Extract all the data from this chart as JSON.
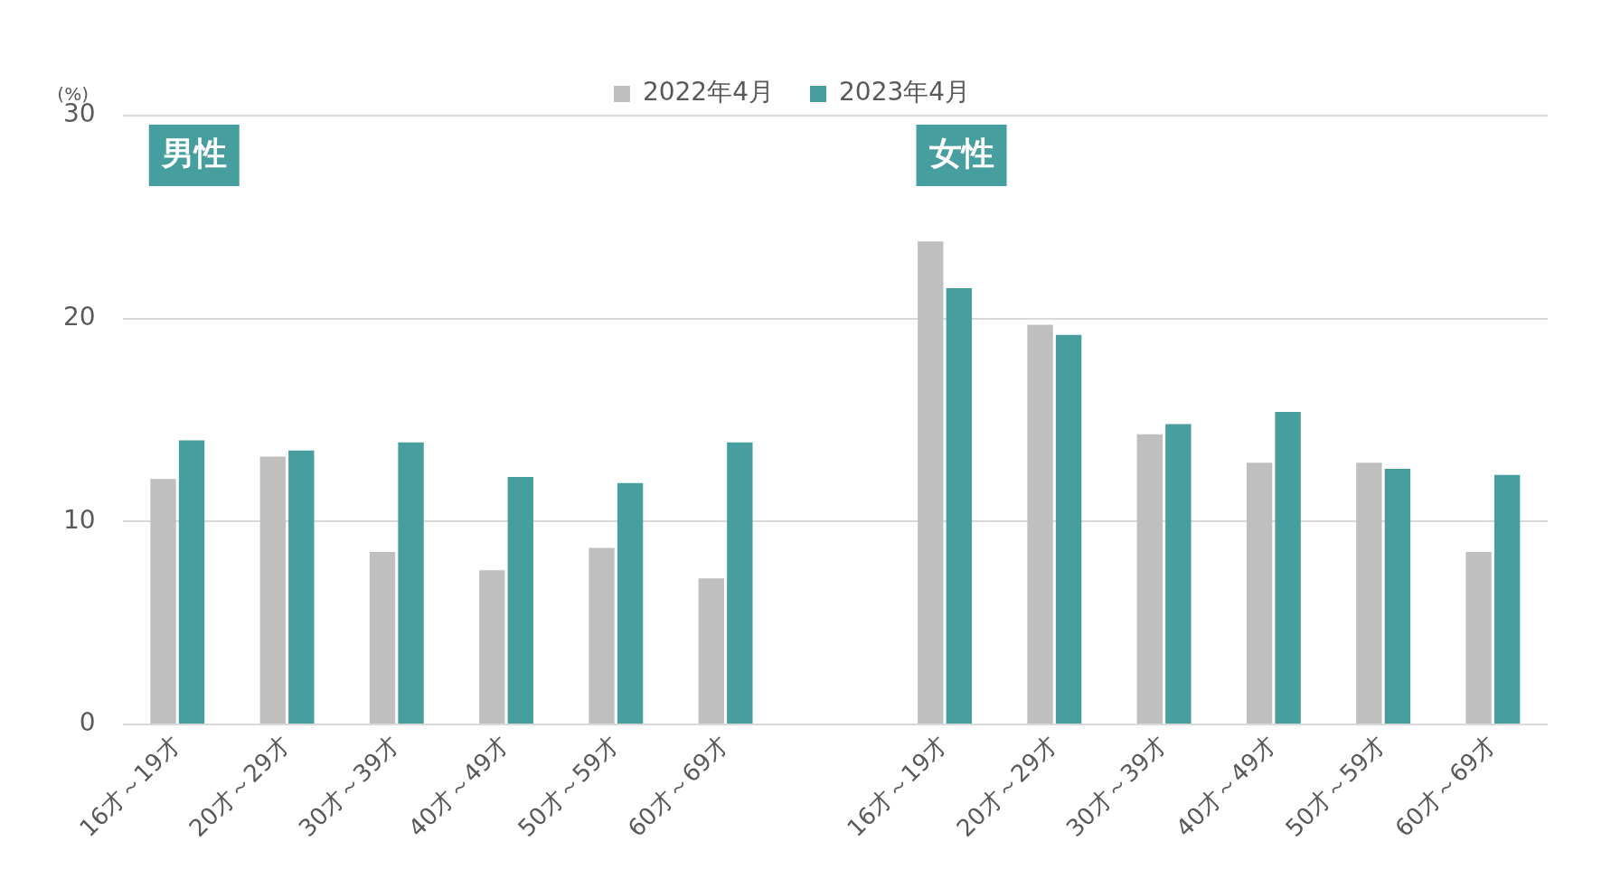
{
  "chart_data": {
    "type": "bar",
    "categories": [
      "16才～19才",
      "20才～29才",
      "30才～39才",
      "40才～49才",
      "50才～59才",
      "60才～69才",
      null,
      "16才～19才",
      "20才～29才",
      "30才～39才",
      "40才～49才",
      "50才～59才",
      "60才～69才"
    ],
    "series": [
      {
        "name": "2022年4月",
        "color": "#bfbfbf",
        "values": [
          12.1,
          13.2,
          8.5,
          7.6,
          8.7,
          7.2,
          null,
          23.8,
          19.7,
          14.3,
          12.9,
          12.9,
          8.5
        ]
      },
      {
        "name": "2023年4月",
        "color": "#469e9e",
        "values": [
          14.0,
          13.5,
          13.9,
          12.2,
          11.9,
          13.9,
          null,
          21.5,
          19.2,
          14.8,
          15.4,
          12.6,
          12.3
        ]
      }
    ],
    "ylabel": "(%)",
    "ylim": [
      0,
      30
    ],
    "yticks": [
      0,
      10,
      20,
      30
    ],
    "grid": "y",
    "legend": "top",
    "annotations": [
      "男性",
      "女性"
    ]
  }
}
